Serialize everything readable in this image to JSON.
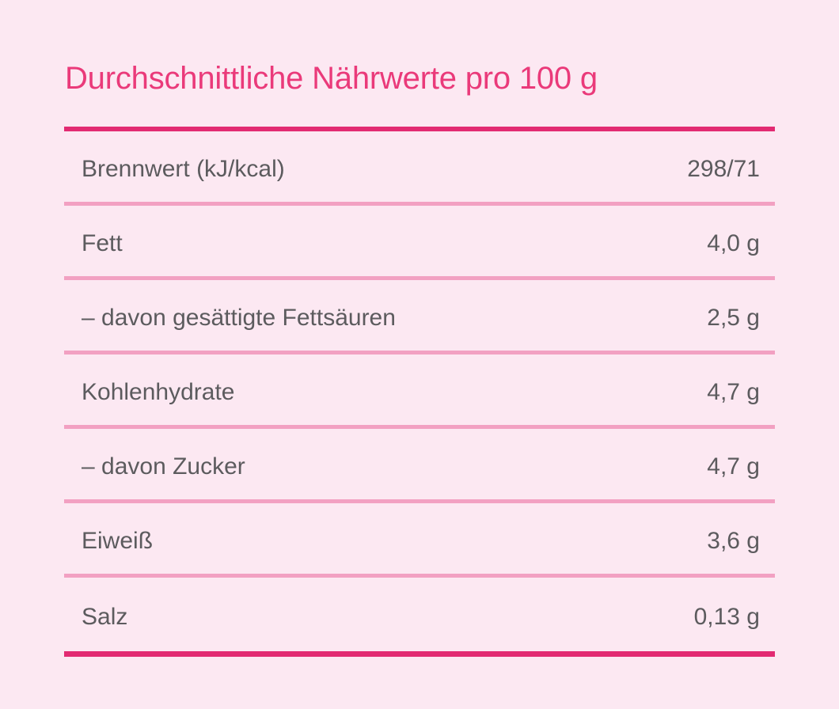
{
  "page": {
    "title": "Durchschnittliche Nährwerte pro 100 g"
  },
  "colors": {
    "background": "#fce8f2",
    "title": "#ea3a7a",
    "heavy_rule": "#e22a72",
    "light_rule": "#f2a0c2",
    "text": "#5c5b5e"
  },
  "nutrition_table": {
    "rows": [
      {
        "label": "Brennwert (kJ/kcal)",
        "value": "298/71"
      },
      {
        "label": "Fett",
        "value": "4,0 g"
      },
      {
        "label": "– davon gesättigte Fettsäuren",
        "value": "2,5 g"
      },
      {
        "label": "Kohlenhydrate",
        "value": "4,7 g"
      },
      {
        "label": "– davon Zucker",
        "value": "4,7 g"
      },
      {
        "label": "Eiweiß",
        "value": "3,6 g"
      },
      {
        "label": "Salz",
        "value": "0,13 g"
      }
    ]
  }
}
